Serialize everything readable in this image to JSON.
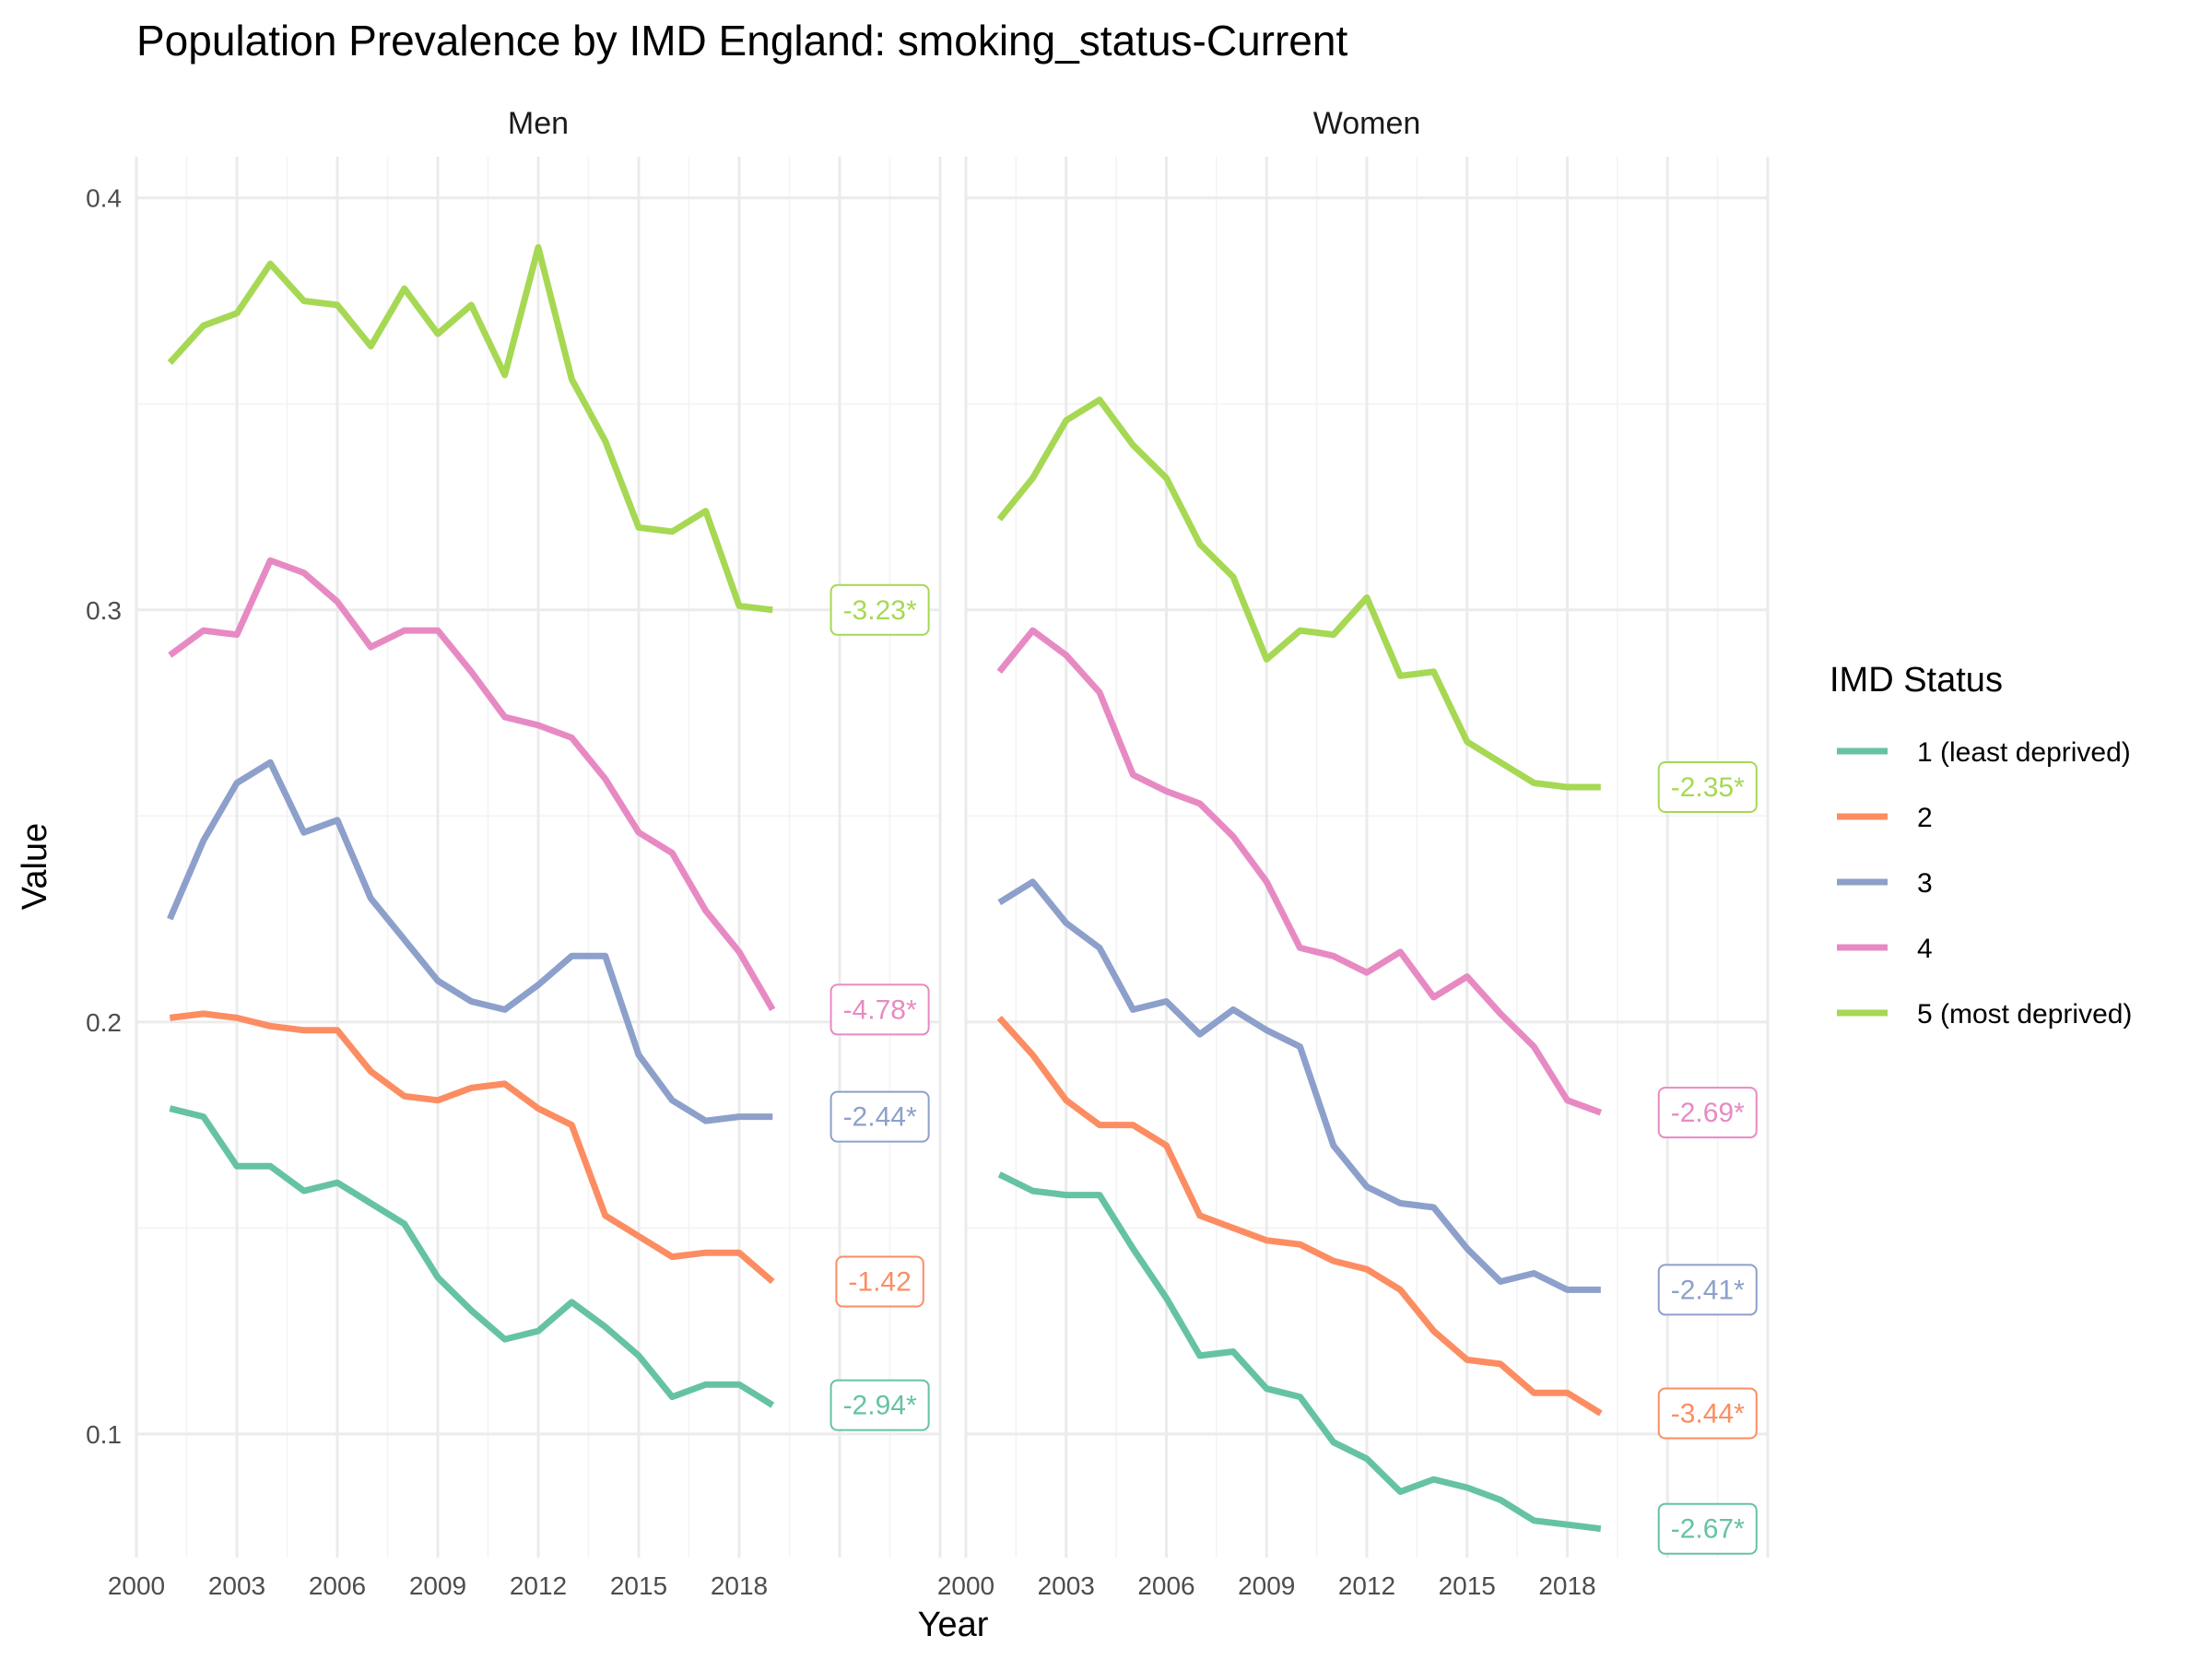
{
  "chart_data": {
    "type": "line",
    "title": "Population Prevalence by IMD England: smoking_status-Current",
    "xlabel": "Year",
    "ylabel": "Value",
    "xlim": [
      2000,
      2024
    ],
    "ylim": [
      0.07,
      0.41
    ],
    "x_ticks": [
      "2000",
      "2003",
      "2006",
      "2009",
      "2012",
      "2015",
      "2018"
    ],
    "y_ticks": [
      "0.1",
      "0.2",
      "0.3",
      "0.4"
    ],
    "grid": true,
    "legend": {
      "title": "IMD Status",
      "placement": "right",
      "entries": [
        "1 (least deprived)",
        "2",
        "3",
        "4",
        "5 (most deprived)"
      ]
    },
    "colors": {
      "1 (least deprived)": "#66c2a5",
      "2": "#fc8d62",
      "3": "#8da0cb",
      "4": "#e78ac3",
      "5 (most deprived)": "#a6d854"
    },
    "x": [
      2001,
      2002,
      2003,
      2004,
      2005,
      2006,
      2007,
      2008,
      2009,
      2010,
      2011,
      2012,
      2013,
      2014,
      2015,
      2016,
      2017,
      2018,
      2019
    ],
    "panels": [
      {
        "name": "Men",
        "series": [
          {
            "name": "1 (least deprived)",
            "values": [
              0.179,
              0.177,
              0.165,
              0.165,
              0.159,
              0.161,
              0.156,
              0.151,
              0.138,
              0.13,
              0.123,
              0.125,
              0.132,
              0.126,
              0.119,
              0.109,
              0.112,
              0.112,
              0.107
            ],
            "annotation": "-2.94*",
            "annotation_y": 0.107
          },
          {
            "name": "2",
            "values": [
              0.201,
              0.202,
              0.201,
              0.199,
              0.198,
              0.198,
              0.188,
              0.182,
              0.181,
              0.184,
              0.185,
              0.179,
              0.175,
              0.153,
              0.148,
              0.143,
              0.144,
              0.144,
              0.137
            ],
            "annotation": "-1.42",
            "annotation_y": 0.137
          },
          {
            "name": "3",
            "values": [
              0.225,
              0.244,
              0.258,
              0.263,
              0.246,
              0.249,
              0.23,
              0.22,
              0.21,
              0.205,
              0.203,
              0.209,
              0.216,
              0.216,
              0.192,
              0.181,
              0.176,
              0.177,
              0.177
            ],
            "annotation": "-2.44*",
            "annotation_y": 0.177
          },
          {
            "name": "4",
            "values": [
              0.289,
              0.295,
              0.294,
              0.312,
              0.309,
              0.302,
              0.291,
              0.295,
              0.295,
              0.285,
              0.274,
              0.272,
              0.269,
              0.259,
              0.246,
              0.241,
              0.227,
              0.217,
              0.203
            ],
            "annotation": "-4.78*",
            "annotation_y": 0.203
          },
          {
            "name": "5 (most deprived)",
            "values": [
              0.36,
              0.369,
              0.372,
              0.384,
              0.375,
              0.374,
              0.364,
              0.378,
              0.367,
              0.374,
              0.357,
              0.388,
              0.356,
              0.341,
              0.32,
              0.319,
              0.324,
              0.301,
              0.3
            ],
            "annotation": "-3.23*",
            "annotation_y": 0.3
          }
        ]
      },
      {
        "name": "Women",
        "series": [
          {
            "name": "1 (least deprived)",
            "values": [
              0.163,
              0.159,
              0.158,
              0.158,
              0.145,
              0.133,
              0.119,
              0.12,
              0.111,
              0.109,
              0.098,
              0.094,
              0.086,
              0.089,
              0.087,
              0.084,
              0.079,
              0.078,
              0.077
            ],
            "annotation": "-2.67*",
            "annotation_y": 0.077
          },
          {
            "name": "2",
            "values": [
              0.201,
              0.192,
              0.181,
              0.175,
              0.175,
              0.17,
              0.153,
              0.15,
              0.147,
              0.146,
              0.142,
              0.14,
              0.135,
              0.125,
              0.118,
              0.117,
              0.11,
              0.11,
              0.105
            ],
            "annotation": "-3.44*",
            "annotation_y": 0.105
          },
          {
            "name": "3",
            "values": [
              0.229,
              0.234,
              0.224,
              0.218,
              0.203,
              0.205,
              0.197,
              0.203,
              0.198,
              0.194,
              0.17,
              0.16,
              0.156,
              0.155,
              0.145,
              0.137,
              0.139,
              0.135,
              0.135
            ],
            "annotation": "-2.41*",
            "annotation_y": 0.135
          },
          {
            "name": "4",
            "values": [
              0.285,
              0.295,
              0.289,
              0.28,
              0.26,
              0.256,
              0.253,
              0.245,
              0.234,
              0.218,
              0.216,
              0.212,
              0.217,
              0.206,
              0.211,
              0.202,
              0.194,
              0.181,
              0.178
            ],
            "annotation": "-2.69*",
            "annotation_y": 0.178
          },
          {
            "name": "5 (most deprived)",
            "values": [
              0.322,
              0.332,
              0.346,
              0.351,
              0.34,
              0.332,
              0.316,
              0.308,
              0.288,
              0.295,
              0.294,
              0.303,
              0.284,
              0.285,
              0.268,
              0.263,
              0.258,
              0.257,
              0.257
            ],
            "annotation": "-2.35*",
            "annotation_y": 0.257
          }
        ]
      }
    ]
  }
}
